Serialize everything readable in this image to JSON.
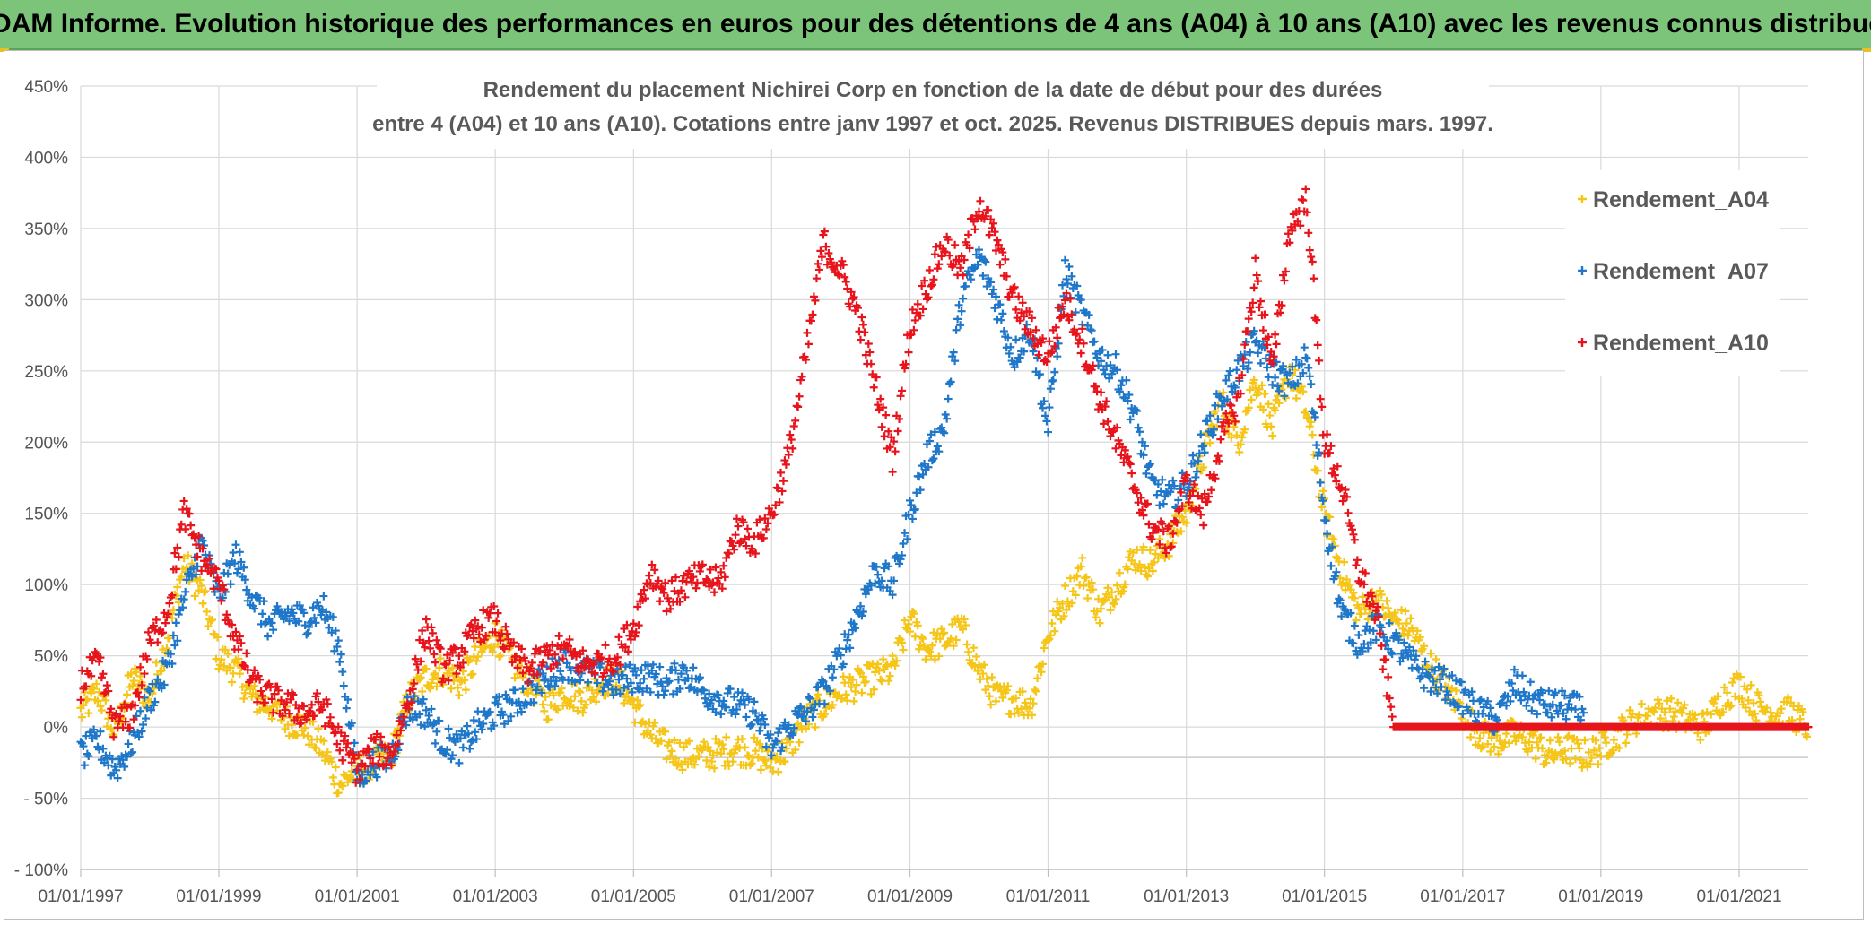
{
  "header": {
    "banner_text": "ADAM Informe. Evolution historique des performances en euros pour des détentions de 4 ans (A04) à 10 ans (A10) avec les revenus connus distribués"
  },
  "colors": {
    "A04": "#f5c518",
    "A07": "#1f77c9",
    "A10": "#e8141c",
    "banner": "#7cc47a"
  },
  "chart_data": {
    "type": "scatter",
    "title_lines": [
      "Rendement du placement Nichirei Corp en fonction de la date de début pour des durées",
      "entre 4 (A04) et 10 ans (A10). Cotations entre janv 1997 et oct. 2025. Revenus DISTRIBUES depuis mars. 1997."
    ],
    "marker": "+",
    "x_ticks": [
      "01/01/1997",
      "01/01/1999",
      "01/01/2001",
      "01/01/2003",
      "01/01/2005",
      "01/01/2007",
      "01/01/2009",
      "01/01/2011",
      "01/01/2013",
      "01/01/2015",
      "01/01/2017",
      "01/01/2019",
      "01/01/2021"
    ],
    "y_ticks": [
      "450%",
      "400%",
      "350%",
      "300%",
      "250%",
      "200%",
      "150%",
      "100%",
      "50%",
      "0%",
      "- 50%",
      "- 100%"
    ],
    "ylim": [
      -100,
      450
    ],
    "xlim": [
      "1997-01-01",
      "2022-01-01"
    ],
    "legend_position": "top-right",
    "series": [
      {
        "name": "Rendement_A04",
        "color_key": "A04",
        "points": [
          [
            "1997-01",
            10
          ],
          [
            "1997-04",
            25
          ],
          [
            "1997-07",
            -5
          ],
          [
            "1997-10",
            35
          ],
          [
            "1998-01",
            20
          ],
          [
            "1998-04",
            60
          ],
          [
            "1998-07",
            115
          ],
          [
            "1998-10",
            95
          ],
          [
            "1999-01",
            50
          ],
          [
            "1999-04",
            40
          ],
          [
            "1999-07",
            20
          ],
          [
            "1999-10",
            15
          ],
          [
            "2000-01",
            5
          ],
          [
            "2000-04",
            0
          ],
          [
            "2000-07",
            -15
          ],
          [
            "2000-10",
            -40
          ],
          [
            "2001-01",
            -30
          ],
          [
            "2001-04",
            -25
          ],
          [
            "2001-07",
            -20
          ],
          [
            "2001-10",
            20
          ],
          [
            "2002-01",
            35
          ],
          [
            "2002-04",
            40
          ],
          [
            "2002-07",
            30
          ],
          [
            "2002-10",
            50
          ],
          [
            "2003-01",
            65
          ],
          [
            "2003-04",
            45
          ],
          [
            "2003-07",
            30
          ],
          [
            "2003-10",
            15
          ],
          [
            "2004-01",
            25
          ],
          [
            "2004-04",
            20
          ],
          [
            "2004-07",
            30
          ],
          [
            "2004-10",
            35
          ],
          [
            "2005-01",
            15
          ],
          [
            "2005-04",
            -5
          ],
          [
            "2005-07",
            -15
          ],
          [
            "2005-10",
            -20
          ],
          [
            "2006-01",
            -20
          ],
          [
            "2006-04",
            -18
          ],
          [
            "2006-07",
            -15
          ],
          [
            "2006-10",
            -18
          ],
          [
            "2007-01",
            -25
          ],
          [
            "2007-04",
            -15
          ],
          [
            "2007-07",
            5
          ],
          [
            "2007-10",
            15
          ],
          [
            "2008-01",
            25
          ],
          [
            "2008-04",
            30
          ],
          [
            "2008-07",
            35
          ],
          [
            "2008-10",
            40
          ],
          [
            "2009-01",
            75
          ],
          [
            "2009-04",
            55
          ],
          [
            "2009-07",
            60
          ],
          [
            "2009-10",
            70
          ],
          [
            "2010-01",
            40
          ],
          [
            "2010-04",
            20
          ],
          [
            "2010-07",
            20
          ],
          [
            "2010-10",
            15
          ],
          [
            "2011-01",
            65
          ],
          [
            "2011-04",
            90
          ],
          [
            "2011-07",
            110
          ],
          [
            "2011-10",
            80
          ],
          [
            "2012-01",
            100
          ],
          [
            "2012-04",
            120
          ],
          [
            "2012-07",
            115
          ],
          [
            "2012-10",
            130
          ],
          [
            "2013-01",
            150
          ],
          [
            "2013-04",
            190
          ],
          [
            "2013-07",
            230
          ],
          [
            "2013-10",
            200
          ],
          [
            "2014-01",
            245
          ],
          [
            "2014-04",
            210
          ],
          [
            "2014-07",
            250
          ],
          [
            "2014-10",
            220
          ],
          [
            "2015-01",
            150
          ],
          [
            "2015-04",
            110
          ],
          [
            "2015-07",
            80
          ],
          [
            "2015-10",
            90
          ],
          [
            "2016-01",
            75
          ],
          [
            "2016-04",
            70
          ],
          [
            "2016-07",
            45
          ],
          [
            "2016-10",
            30
          ],
          [
            "2017-01",
            10
          ],
          [
            "2017-04",
            -5
          ],
          [
            "2017-07",
            -10
          ],
          [
            "2017-10",
            -5
          ],
          [
            "2018-01",
            -10
          ],
          [
            "2018-04",
            -20
          ],
          [
            "2018-07",
            -15
          ],
          [
            "2018-10",
            -20
          ],
          [
            "2019-01",
            -15
          ],
          [
            "2019-04",
            -5
          ],
          [
            "2019-07",
            5
          ],
          [
            "2019-10",
            10
          ],
          [
            "2020-01",
            10
          ],
          [
            "2020-04",
            5
          ],
          [
            "2020-07",
            0
          ],
          [
            "2020-10",
            20
          ],
          [
            "2021-01",
            30
          ],
          [
            "2021-04",
            15
          ],
          [
            "2021-07",
            10
          ],
          [
            "2021-10",
            10
          ],
          [
            "2022-01",
            0
          ]
        ]
      },
      {
        "name": "Rendement_A07",
        "color_key": "A07",
        "points": [
          [
            "1997-01",
            -20
          ],
          [
            "1997-04",
            -10
          ],
          [
            "1997-07",
            -30
          ],
          [
            "1997-10",
            -10
          ],
          [
            "1998-01",
            20
          ],
          [
            "1998-04",
            40
          ],
          [
            "1998-07",
            90
          ],
          [
            "1998-10",
            130
          ],
          [
            "1999-01",
            90
          ],
          [
            "1999-04",
            120
          ],
          [
            "1999-07",
            90
          ],
          [
            "1999-10",
            70
          ],
          [
            "2000-01",
            80
          ],
          [
            "2000-04",
            75
          ],
          [
            "2000-07",
            85
          ],
          [
            "2000-10",
            55
          ],
          [
            "2001-01",
            -35
          ],
          [
            "2001-04",
            -25
          ],
          [
            "2001-07",
            -20
          ],
          [
            "2001-10",
            15
          ],
          [
            "2002-01",
            10
          ],
          [
            "2002-04",
            -10
          ],
          [
            "2002-07",
            -15
          ],
          [
            "2002-10",
            0
          ],
          [
            "2003-01",
            10
          ],
          [
            "2003-04",
            15
          ],
          [
            "2003-07",
            25
          ],
          [
            "2003-10",
            35
          ],
          [
            "2004-01",
            45
          ],
          [
            "2004-04",
            40
          ],
          [
            "2004-07",
            35
          ],
          [
            "2004-10",
            30
          ],
          [
            "2005-01",
            35
          ],
          [
            "2005-04",
            35
          ],
          [
            "2005-07",
            30
          ],
          [
            "2005-10",
            40
          ],
          [
            "2006-01",
            25
          ],
          [
            "2006-04",
            20
          ],
          [
            "2006-07",
            15
          ],
          [
            "2006-10",
            10
          ],
          [
            "2007-01",
            -15
          ],
          [
            "2007-04",
            0
          ],
          [
            "2007-07",
            10
          ],
          [
            "2007-10",
            25
          ],
          [
            "2008-01",
            50
          ],
          [
            "2008-04",
            80
          ],
          [
            "2008-07",
            110
          ],
          [
            "2008-10",
            100
          ],
          [
            "2009-01",
            150
          ],
          [
            "2009-04",
            190
          ],
          [
            "2009-07",
            210
          ],
          [
            "2009-10",
            300
          ],
          [
            "2010-01",
            330
          ],
          [
            "2010-04",
            300
          ],
          [
            "2010-07",
            260
          ],
          [
            "2010-10",
            280
          ],
          [
            "2011-01",
            210
          ],
          [
            "2011-04",
            320
          ],
          [
            "2011-07",
            290
          ],
          [
            "2011-10",
            260
          ],
          [
            "2012-01",
            250
          ],
          [
            "2012-04",
            220
          ],
          [
            "2012-07",
            170
          ],
          [
            "2012-10",
            160
          ],
          [
            "2013-01",
            170
          ],
          [
            "2013-04",
            200
          ],
          [
            "2013-07",
            230
          ],
          [
            "2013-10",
            250
          ],
          [
            "2014-01",
            270
          ],
          [
            "2014-04",
            250
          ],
          [
            "2014-07",
            240
          ],
          [
            "2014-10",
            260
          ],
          [
            "2015-01",
            150
          ],
          [
            "2015-04",
            80
          ],
          [
            "2015-07",
            60
          ],
          [
            "2015-10",
            70
          ],
          [
            "2016-01",
            60
          ],
          [
            "2016-04",
            45
          ],
          [
            "2016-07",
            35
          ],
          [
            "2016-10",
            30
          ],
          [
            "2017-01",
            20
          ],
          [
            "2017-04",
            10
          ],
          [
            "2017-07",
            5
          ],
          [
            "2017-10",
            30
          ],
          [
            "2018-01",
            20
          ],
          [
            "2018-04",
            15
          ],
          [
            "2018-07",
            15
          ],
          [
            "2018-10",
            10
          ]
        ]
      },
      {
        "name": "Rendement_A10",
        "color_key": "A10",
        "points": [
          [
            "1997-01",
            30
          ],
          [
            "1997-04",
            45
          ],
          [
            "1997-07",
            0
          ],
          [
            "1997-10",
            10
          ],
          [
            "1998-01",
            60
          ],
          [
            "1998-04",
            80
          ],
          [
            "1998-07",
            150
          ],
          [
            "1998-10",
            120
          ],
          [
            "1999-01",
            100
          ],
          [
            "1999-04",
            60
          ],
          [
            "1999-07",
            30
          ],
          [
            "1999-10",
            20
          ],
          [
            "2000-01",
            15
          ],
          [
            "2000-04",
            10
          ],
          [
            "2000-07",
            15
          ],
          [
            "2000-10",
            -10
          ],
          [
            "2001-01",
            -30
          ],
          [
            "2001-04",
            -15
          ],
          [
            "2001-07",
            -20
          ],
          [
            "2001-10",
            20
          ],
          [
            "2002-01",
            70
          ],
          [
            "2002-04",
            40
          ],
          [
            "2002-07",
            50
          ],
          [
            "2002-10",
            70
          ],
          [
            "2003-01",
            75
          ],
          [
            "2003-04",
            50
          ],
          [
            "2003-07",
            40
          ],
          [
            "2003-10",
            50
          ],
          [
            "2004-01",
            55
          ],
          [
            "2004-04",
            45
          ],
          [
            "2004-07",
            45
          ],
          [
            "2004-10",
            50
          ],
          [
            "2005-01",
            70
          ],
          [
            "2005-04",
            110
          ],
          [
            "2005-07",
            90
          ],
          [
            "2005-10",
            100
          ],
          [
            "2006-01",
            105
          ],
          [
            "2006-04",
            100
          ],
          [
            "2006-07",
            140
          ],
          [
            "2006-10",
            130
          ],
          [
            "2007-01",
            150
          ],
          [
            "2007-04",
            190
          ],
          [
            "2007-07",
            260
          ],
          [
            "2007-10",
            340
          ],
          [
            "2008-01",
            320
          ],
          [
            "2008-04",
            290
          ],
          [
            "2008-07",
            240
          ],
          [
            "2008-10",
            190
          ],
          [
            "2009-01",
            280
          ],
          [
            "2009-04",
            310
          ],
          [
            "2009-07",
            340
          ],
          [
            "2009-10",
            320
          ],
          [
            "2010-01",
            370
          ],
          [
            "2010-04",
            340
          ],
          [
            "2010-07",
            300
          ],
          [
            "2010-10",
            280
          ],
          [
            "2011-01",
            260
          ],
          [
            "2011-04",
            300
          ],
          [
            "2011-07",
            270
          ],
          [
            "2011-10",
            230
          ],
          [
            "2012-01",
            200
          ],
          [
            "2012-04",
            170
          ],
          [
            "2012-07",
            140
          ],
          [
            "2012-10",
            130
          ],
          [
            "2013-01",
            170
          ],
          [
            "2013-04",
            150
          ],
          [
            "2013-07",
            200
          ],
          [
            "2013-10",
            230
          ],
          [
            "2014-01",
            320
          ],
          [
            "2014-04",
            250
          ],
          [
            "2014-07",
            350
          ],
          [
            "2014-10",
            370
          ],
          [
            "2015-01",
            200
          ],
          [
            "2015-04",
            170
          ],
          [
            "2015-07",
            110
          ],
          [
            "2015-10",
            80
          ],
          [
            "2016-01",
            0
          ],
          [
            "2018-01",
            0
          ],
          [
            "2020-01",
            0
          ],
          [
            "2022-01",
            0
          ]
        ]
      }
    ]
  }
}
